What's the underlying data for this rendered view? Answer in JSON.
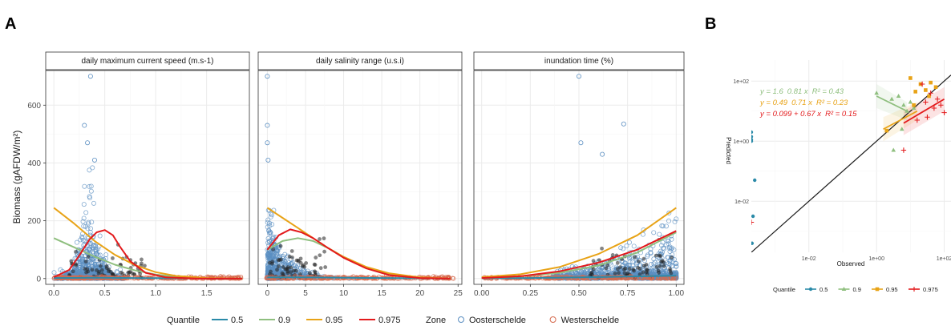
{
  "panel_labels": {
    "a": "A",
    "b": "B"
  },
  "colors": {
    "q05": "#2a8aa8",
    "q09": "#8fbf7f",
    "q095": "#e8a317",
    "q0975": "#e31a1c",
    "oosterschelde": "#5b8fc2",
    "westerschelde": "#d66a4e",
    "dark_points": "#222222"
  },
  "chart_data": [
    {
      "type": "scatter",
      "title": "",
      "facets": [
        {
          "name": "daily maximum current speed (m.s-1)",
          "xlim": [
            -0.08,
            1.92
          ],
          "xticks": [
            0.0,
            0.5,
            1.0,
            1.5
          ],
          "xtick_labels": [
            "0.0",
            "0.5",
            "1.0",
            "1.5"
          ]
        },
        {
          "name": "daily salinity range (u.s.i)",
          "xlim": [
            -1.2,
            25.5
          ],
          "xticks": [
            0,
            5,
            10,
            15,
            20,
            25
          ],
          "xtick_labels": [
            "0",
            "5",
            "10",
            "15",
            "20",
            "25"
          ]
        },
        {
          "name": "inundation time (%)",
          "xlim": [
            -0.04,
            1.04
          ],
          "xticks": [
            0.0,
            0.25,
            0.5,
            0.75,
            1.0
          ],
          "xtick_labels": [
            "0.00",
            "0.25",
            "0.50",
            "0.75",
            "1.00"
          ]
        }
      ],
      "ylabel": "Biomass (gAFDW/m²)",
      "ylim": [
        -20,
        720
      ],
      "yticks": [
        0,
        200,
        400,
        600
      ],
      "ytick_labels": [
        "0",
        "200",
        "400",
        "600"
      ],
      "grid": true,
      "legend_position": "bottom",
      "quantile_legend": {
        "title": "Quantile",
        "items": [
          "0.5",
          "0.9",
          "0.95",
          "0.975"
        ]
      },
      "zone_legend": {
        "title": "Zone",
        "items": [
          "Oosterschelde",
          "Westerschelde"
        ]
      },
      "quantile_curves": [
        [
          {
            "quantile": "0.5",
            "x": [
              0,
              0.4,
              0.8,
              1.2,
              1.6,
              1.85
            ],
            "y": [
              2,
              3,
              2,
              1,
              0,
              0
            ]
          },
          {
            "quantile": "0.9",
            "x": [
              0,
              0.2,
              0.4,
              0.6,
              0.8,
              1.0,
              1.2,
              1.5,
              1.85
            ],
            "y": [
              140,
              108,
              76,
              48,
              28,
              14,
              6,
              1,
              0
            ]
          },
          {
            "quantile": "0.95",
            "x": [
              0,
              0.2,
              0.4,
              0.6,
              0.8,
              1.0,
              1.2,
              1.5,
              1.85
            ],
            "y": [
              245,
              190,
              130,
              82,
              46,
              22,
              9,
              2,
              0
            ]
          },
          {
            "quantile": "0.975",
            "x": [
              0,
              0.15,
              0.25,
              0.35,
              0.42,
              0.5,
              0.58,
              0.65,
              0.75,
              0.9,
              1.1,
              1.4,
              1.85
            ],
            "y": [
              5,
              30,
              80,
              135,
              160,
              168,
              150,
              110,
              60,
              20,
              4,
              0,
              0
            ]
          }
        ],
        [
          {
            "quantile": "0.5",
            "x": [
              0,
              5,
              10,
              15,
              20,
              24
            ],
            "y": [
              4,
              4,
              3,
              2,
              1,
              0
            ]
          },
          {
            "quantile": "0.9",
            "x": [
              0,
              2,
              4,
              6,
              8,
              10,
              13,
              16,
              20,
              24
            ],
            "y": [
              100,
              130,
              140,
              130,
              105,
              75,
              38,
              14,
              3,
              0
            ]
          },
          {
            "quantile": "0.95",
            "x": [
              0,
              2,
              4,
              6,
              8,
              10,
              13,
              16,
              20,
              24
            ],
            "y": [
              245,
              210,
              175,
              140,
              105,
              75,
              40,
              18,
              4,
              0
            ]
          },
          {
            "quantile": "0.975",
            "x": [
              0,
              1.5,
              3,
              4.5,
              6,
              8,
              10,
              13,
              16,
              20,
              24
            ],
            "y": [
              100,
              150,
              170,
              160,
              140,
              105,
              72,
              35,
              12,
              2,
              0
            ]
          }
        ],
        [
          {
            "quantile": "0.5",
            "x": [
              0,
              0.25,
              0.5,
              0.75,
              1.0
            ],
            "y": [
              1,
              2,
              4,
              7,
              10
            ]
          },
          {
            "quantile": "0.9",
            "x": [
              0,
              0.2,
              0.4,
              0.6,
              0.8,
              1.0
            ],
            "y": [
              2,
              8,
              20,
              45,
              90,
              160
            ]
          },
          {
            "quantile": "0.95",
            "x": [
              0,
              0.2,
              0.4,
              0.6,
              0.8,
              1.0
            ],
            "y": [
              5,
              15,
              40,
              85,
              150,
              245
            ]
          },
          {
            "quantile": "0.975",
            "x": [
              0,
              0.2,
              0.4,
              0.6,
              0.8,
              1.0
            ],
            "y": [
              2,
              8,
              25,
              55,
              100,
              165
            ]
          }
        ]
      ]
    },
    {
      "type": "scatter",
      "title": "",
      "xlabel": "Observed",
      "ylabel": "Predicted",
      "scale": "log10",
      "xlim_log10": [
        -3.7,
        2.2
      ],
      "ylim_log10": [
        -3.7,
        2.7
      ],
      "xticks_log10": [
        -2,
        0,
        2
      ],
      "xtick_labels": [
        "1e-02",
        "1e+00",
        "1e+02"
      ],
      "yticks_log10": [
        -2,
        0,
        2
      ],
      "ytick_labels": [
        "1e-02",
        "1e+00",
        "1e+02"
      ],
      "grid": true,
      "legend_position": "bottom",
      "quantile_legend": {
        "title": "Quantile",
        "items": [
          "0.5",
          "0.9",
          "0.95",
          "0.975"
        ]
      },
      "equations": [
        {
          "quantile": "0.9",
          "parts": [
            "y = 1.6",
            "0.81 x",
            "R² = 0.43"
          ]
        },
        {
          "quantile": "0.95",
          "parts": [
            "y = 0.49",
            "0.71 x",
            "R² = 0.23"
          ]
        },
        {
          "quantile": "0.975",
          "parts": [
            "y = 0.099 + 0.67 x",
            "R² = 0.15"
          ]
        }
      ],
      "identity_line": {
        "x": [
          -3.7,
          2.2
        ],
        "y": [
          -3.7,
          2.2
        ]
      },
      "fit_lines": [
        {
          "quantile": "0.9",
          "x": [
            0.0,
            0.9
          ],
          "y": [
            1.5,
            1.0
          ]
        },
        {
          "quantile": "0.95",
          "x": [
            0.2,
            1.2
          ],
          "y": [
            0.4,
            1.0
          ]
        },
        {
          "quantile": "0.975",
          "x": [
            0.8,
            2.0
          ],
          "y": [
            0.6,
            1.4
          ]
        }
      ],
      "series": [
        {
          "quantile": "0.5",
          "marker": "circle",
          "x": [
            -3.7,
            -3.7,
            -3.7,
            -3.7,
            -3.6,
            -3.68,
            -3.65
          ],
          "y": [
            0.3,
            0.15,
            0.05,
            0.0,
            -1.3,
            -3.4,
            -2.5
          ]
        },
        {
          "quantile": "0.9",
          "marker": "triangle",
          "x": [
            0.0,
            0.45,
            0.65,
            0.8,
            0.9,
            1.0,
            1.1,
            0.75,
            0.5
          ],
          "y": [
            1.6,
            1.4,
            1.5,
            1.2,
            1.0,
            1.3,
            1.1,
            0.4,
            -0.3
          ]
        },
        {
          "quantile": "0.95",
          "marker": "square",
          "x": [
            1.0,
            1.15,
            1.3,
            1.45,
            1.55,
            1.6,
            1.75,
            1.1,
            0.3
          ],
          "y": [
            2.1,
            1.65,
            1.9,
            1.7,
            1.5,
            1.95,
            1.8,
            1.2,
            0.35
          ]
        },
        {
          "quantile": "0.975",
          "marker": "plus",
          "x": [
            1.35,
            1.45,
            1.6,
            1.7,
            1.8,
            1.9,
            2.0,
            1.5,
            1.2,
            0.8,
            -3.7
          ],
          "y": [
            1.9,
            1.3,
            1.6,
            1.1,
            1.4,
            1.2,
            0.95,
            0.8,
            0.7,
            -0.3,
            -2.7
          ]
        }
      ]
    }
  ]
}
